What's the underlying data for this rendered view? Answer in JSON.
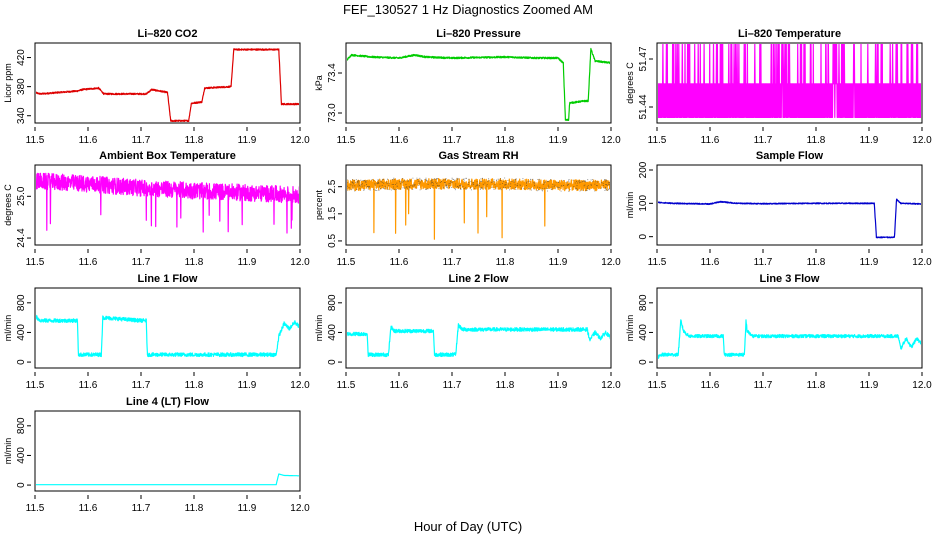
{
  "figure": {
    "title": "FEF_130527  1 Hz Diagnostics Zoomed AM",
    "xlabel": "Hour of Day (UTC)"
  },
  "chart_data": [
    {
      "type": "line",
      "title": "Li–820 CO2",
      "ylabel": "Licor ppm",
      "color": "#dd0000",
      "xlim": [
        11.5,
        12.0
      ],
      "ylim": [
        330,
        440
      ],
      "xticks": [
        "11.5",
        "11.6",
        "11.7",
        "11.8",
        "11.9",
        "12.0"
      ],
      "yticks": [
        "340",
        "380",
        "420"
      ],
      "noise": 1,
      "points": [
        [
          11.5,
          372
        ],
        [
          11.51,
          370
        ],
        [
          11.58,
          374
        ],
        [
          11.59,
          376
        ],
        [
          11.62,
          378
        ],
        [
          11.63,
          370
        ],
        [
          11.71,
          370
        ],
        [
          11.72,
          376
        ],
        [
          11.75,
          372
        ],
        [
          11.756,
          333
        ],
        [
          11.79,
          333
        ],
        [
          11.795,
          357
        ],
        [
          11.815,
          359
        ],
        [
          11.82,
          378
        ],
        [
          11.87,
          380
        ],
        [
          11.875,
          431
        ],
        [
          11.96,
          431
        ],
        [
          11.965,
          356
        ],
        [
          12.0,
          356
        ]
      ]
    },
    {
      "type": "line",
      "title": "Li–820 Pressure",
      "ylabel": "kPa",
      "color": "#00cc00",
      "xlim": [
        11.5,
        12.0
      ],
      "ylim": [
        72.9,
        73.7
      ],
      "xticks": [
        "11.5",
        "11.6",
        "11.7",
        "11.8",
        "11.9",
        "12.0"
      ],
      "yticks": [
        "73.0",
        "73.4"
      ],
      "noise": 0.008,
      "points": [
        [
          11.5,
          73.52
        ],
        [
          11.51,
          73.58
        ],
        [
          11.55,
          73.56
        ],
        [
          11.6,
          73.55
        ],
        [
          11.63,
          73.58
        ],
        [
          11.65,
          73.56
        ],
        [
          11.7,
          73.55
        ],
        [
          11.8,
          73.56
        ],
        [
          11.86,
          73.55
        ],
        [
          11.9,
          73.55
        ],
        [
          11.91,
          73.5
        ],
        [
          11.914,
          72.93
        ],
        [
          11.92,
          72.93
        ],
        [
          11.922,
          73.1
        ],
        [
          11.95,
          73.12
        ],
        [
          11.957,
          73.12
        ],
        [
          11.962,
          73.64
        ],
        [
          11.97,
          73.52
        ],
        [
          12.0,
          73.5
        ]
      ]
    },
    {
      "type": "line",
      "title": "Li–820 Temperature",
      "ylabel": "degrees C",
      "color": "#ff00ff",
      "xlim": [
        11.5,
        12.0
      ],
      "ylim": [
        51.43,
        51.48
      ],
      "xticks": [
        "11.5",
        "11.6",
        "11.7",
        "11.8",
        "11.9",
        "12.0"
      ],
      "yticks": [
        "51.44",
        "51.47"
      ],
      "mode": "toggle",
      "levels": [
        51.4335,
        51.4545,
        51.4795
      ],
      "spike_density": 0.12
    },
    {
      "type": "line",
      "title": "Ambient Box Temperature",
      "ylabel": "degrees C",
      "color": "#ff00ff",
      "xlim": [
        11.5,
        12.0
      ],
      "ylim": [
        24.3,
        25.45
      ],
      "xticks": [
        "11.5",
        "11.6",
        "11.7",
        "11.8",
        "11.9",
        "12.0"
      ],
      "yticks": [
        "24.4",
        "25.0"
      ],
      "mode": "noise",
      "noise": 0.12,
      "spike_low": 24.4,
      "points": [
        [
          11.5,
          25.22
        ],
        [
          11.6,
          25.18
        ],
        [
          11.7,
          25.12
        ],
        [
          11.8,
          25.08
        ],
        [
          11.9,
          25.05
        ],
        [
          12.0,
          25.02
        ]
      ]
    },
    {
      "type": "line",
      "title": "Gas Stream RH",
      "ylabel": "percent",
      "color": "#ff9900",
      "marker_color": "#333333",
      "xlim": [
        11.5,
        12.0
      ],
      "ylim": [
        0.35,
        3.3
      ],
      "xticks": [
        "11.5",
        "11.6",
        "11.7",
        "11.8",
        "11.9",
        "12.0"
      ],
      "yticks": [
        "0.5",
        "1.5",
        "2.5"
      ],
      "mode": "noise",
      "noise": 0.2,
      "spike_low": 0.55,
      "points": [
        [
          11.5,
          2.55
        ],
        [
          11.6,
          2.6
        ],
        [
          11.7,
          2.6
        ],
        [
          11.8,
          2.6
        ],
        [
          11.9,
          2.55
        ],
        [
          12.0,
          2.55
        ]
      ]
    },
    {
      "type": "line",
      "title": "Sample Flow",
      "ylabel": "ml/min",
      "color": "#0000cc",
      "xlim": [
        11.5,
        12.0
      ],
      "ylim": [
        -25,
        215
      ],
      "xticks": [
        "11.5",
        "11.6",
        "11.7",
        "11.8",
        "11.9",
        "12.0"
      ],
      "yticks": [
        "0",
        "100",
        "200"
      ],
      "noise": 1.5,
      "points": [
        [
          11.5,
          103
        ],
        [
          11.53,
          100
        ],
        [
          11.6,
          98
        ],
        [
          11.62,
          105
        ],
        [
          11.65,
          100
        ],
        [
          11.7,
          99
        ],
        [
          11.8,
          100
        ],
        [
          11.88,
          100
        ],
        [
          11.91,
          100
        ],
        [
          11.914,
          -2
        ],
        [
          11.948,
          -2
        ],
        [
          11.952,
          112
        ],
        [
          11.96,
          100
        ],
        [
          12.0,
          98
        ]
      ]
    },
    {
      "type": "line",
      "title": "Line 1 Flow",
      "ylabel": "ml/min",
      "color": "#00ffff",
      "xlim": [
        11.5,
        12.0
      ],
      "ylim": [
        -80,
        1000
      ],
      "xticks": [
        "11.5",
        "11.6",
        "11.7",
        "11.8",
        "11.9",
        "12.0"
      ],
      "yticks": [
        "0",
        "400",
        "800"
      ],
      "noise": 25,
      "points": [
        [
          11.5,
          620
        ],
        [
          11.51,
          560
        ],
        [
          11.58,
          560
        ],
        [
          11.582,
          100
        ],
        [
          11.625,
          100
        ],
        [
          11.628,
          600
        ],
        [
          11.7,
          560
        ],
        [
          11.71,
          560
        ],
        [
          11.712,
          100
        ],
        [
          11.955,
          100
        ],
        [
          11.96,
          350
        ],
        [
          11.97,
          520
        ],
        [
          11.98,
          450
        ],
        [
          11.99,
          540
        ],
        [
          12.0,
          470
        ]
      ]
    },
    {
      "type": "line",
      "title": "Line 2 Flow",
      "ylabel": "ml/min",
      "color": "#00ffff",
      "xlim": [
        11.5,
        12.0
      ],
      "ylim": [
        -80,
        1000
      ],
      "xticks": [
        "11.5",
        "11.6",
        "11.7",
        "11.8",
        "11.9",
        "12.0"
      ],
      "yticks": [
        "0",
        "400",
        "800"
      ],
      "noise": 25,
      "points": [
        [
          11.5,
          380
        ],
        [
          11.54,
          380
        ],
        [
          11.542,
          100
        ],
        [
          11.58,
          100
        ],
        [
          11.585,
          480
        ],
        [
          11.59,
          420
        ],
        [
          11.665,
          420
        ],
        [
          11.667,
          100
        ],
        [
          11.707,
          100
        ],
        [
          11.712,
          500
        ],
        [
          11.72,
          440
        ],
        [
          11.955,
          440
        ],
        [
          11.96,
          300
        ],
        [
          11.97,
          400
        ],
        [
          11.98,
          320
        ],
        [
          11.99,
          400
        ],
        [
          12.0,
          320
        ]
      ]
    },
    {
      "type": "line",
      "title": "Line 3 Flow",
      "ylabel": "ml/min",
      "color": "#00ffff",
      "xlim": [
        11.5,
        12.0
      ],
      "ylim": [
        -80,
        1000
      ],
      "xticks": [
        "11.5",
        "11.6",
        "11.7",
        "11.8",
        "11.9",
        "12.0"
      ],
      "yticks": [
        "0",
        "400",
        "800"
      ],
      "noise": 22,
      "points": [
        [
          11.5,
          60
        ],
        [
          11.51,
          100
        ],
        [
          11.54,
          100
        ],
        [
          11.545,
          560
        ],
        [
          11.55,
          420
        ],
        [
          11.56,
          350
        ],
        [
          11.625,
          350
        ],
        [
          11.627,
          100
        ],
        [
          11.665,
          100
        ],
        [
          11.668,
          560
        ],
        [
          11.67,
          420
        ],
        [
          11.68,
          350
        ],
        [
          11.955,
          350
        ],
        [
          11.96,
          180
        ],
        [
          11.97,
          320
        ],
        [
          11.98,
          200
        ],
        [
          11.99,
          320
        ],
        [
          12.0,
          240
        ]
      ]
    },
    {
      "type": "line",
      "title": "Line 4 (LT) Flow",
      "ylabel": "ml/min",
      "color": "#00ffff",
      "xlim": [
        11.5,
        12.0
      ],
      "ylim": [
        -80,
        1000
      ],
      "xticks": [
        "11.5",
        "11.6",
        "11.7",
        "11.8",
        "11.9",
        "12.0"
      ],
      "yticks": [
        "0",
        "400",
        "800"
      ],
      "noise": 0,
      "points": [
        [
          11.5,
          5
        ],
        [
          11.955,
          5
        ],
        [
          11.96,
          150
        ],
        [
          11.97,
          130
        ],
        [
          12.0,
          125
        ]
      ]
    }
  ]
}
